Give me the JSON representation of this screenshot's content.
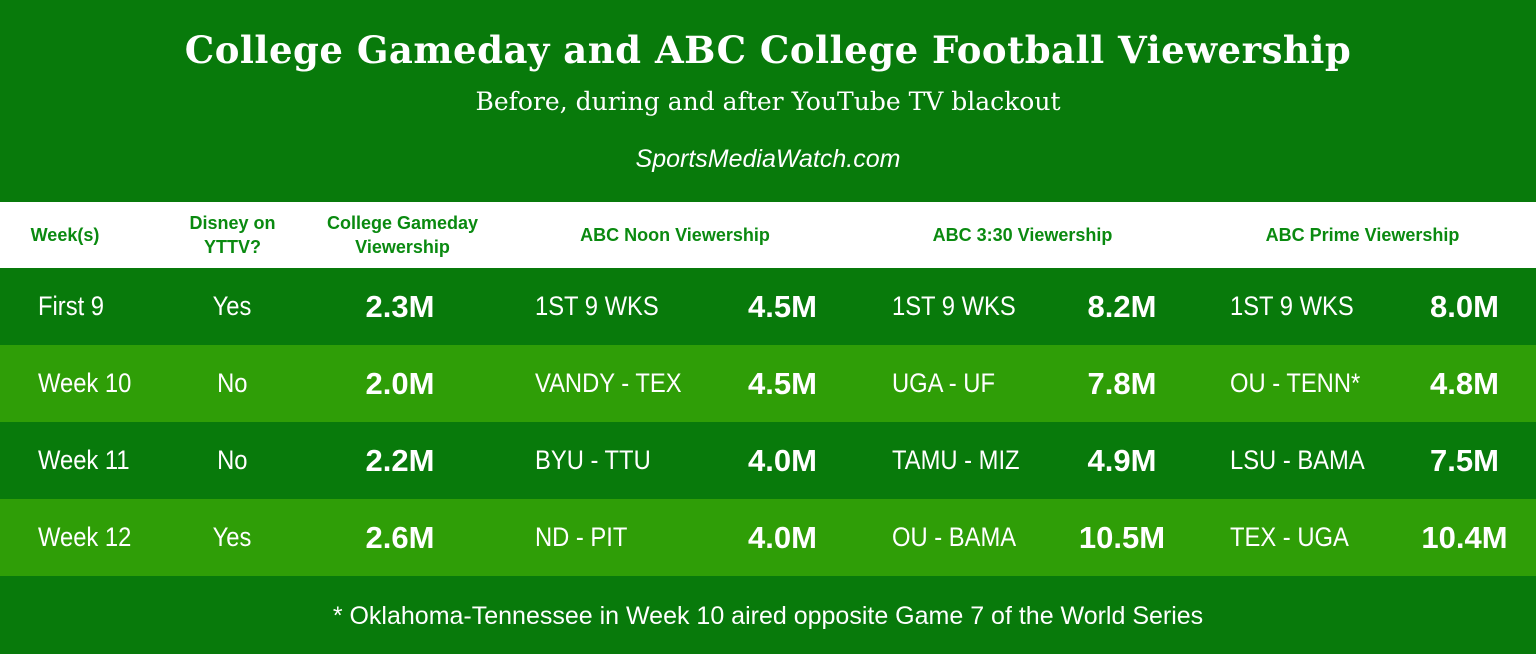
{
  "header": {
    "title": "College Gameday and ABC College Football Viewership",
    "subtitle": "Before, during and after YouTube TV blackout",
    "source": "SportsMediaWatch.com"
  },
  "columns": {
    "week": "Week(s)",
    "disney": "Disney on\nYTTV?",
    "gameday": "College Gameday\nViewership",
    "noon": "ABC Noon Viewership",
    "three": "ABC 3:30 Viewership",
    "prime": "ABC Prime Viewership"
  },
  "rows": [
    {
      "week": "First 9",
      "disney": "Yes",
      "gameday": "2.3M",
      "noon_game": "1ST 9 WKS",
      "noon_val": "4.5M",
      "three_game": "1ST 9 WKS",
      "three_val": "8.2M",
      "prime_game": "1ST 9 WKS",
      "prime_val": "8.0M"
    },
    {
      "week": "Week 10",
      "disney": "No",
      "gameday": "2.0M",
      "noon_game": "VANDY - TEX",
      "noon_val": "4.5M",
      "three_game": "UGA - UF",
      "three_val": "7.8M",
      "prime_game": "OU - TENN*",
      "prime_val": "4.8M"
    },
    {
      "week": "Week 11",
      "disney": "No",
      "gameday": "2.2M",
      "noon_game": "BYU - TTU",
      "noon_val": "4.0M",
      "three_game": "TAMU - MIZ",
      "three_val": "4.9M",
      "prime_game": "LSU - BAMA",
      "prime_val": "7.5M"
    },
    {
      "week": "Week 12",
      "disney": "Yes",
      "gameday": "2.6M",
      "noon_game": "ND - PIT",
      "noon_val": "4.0M",
      "three_game": "OU - BAMA",
      "three_val": "10.5M",
      "prime_game": "TEX - UGA",
      "prime_val": "10.4M"
    }
  ],
  "footnote": "* Oklahoma-Tennessee in Week 10 aired opposite Game 7 of the World Series",
  "colors": {
    "dark_green": "#087a0b",
    "light_green": "#2f9e07",
    "header_text": "#0a8a10"
  }
}
